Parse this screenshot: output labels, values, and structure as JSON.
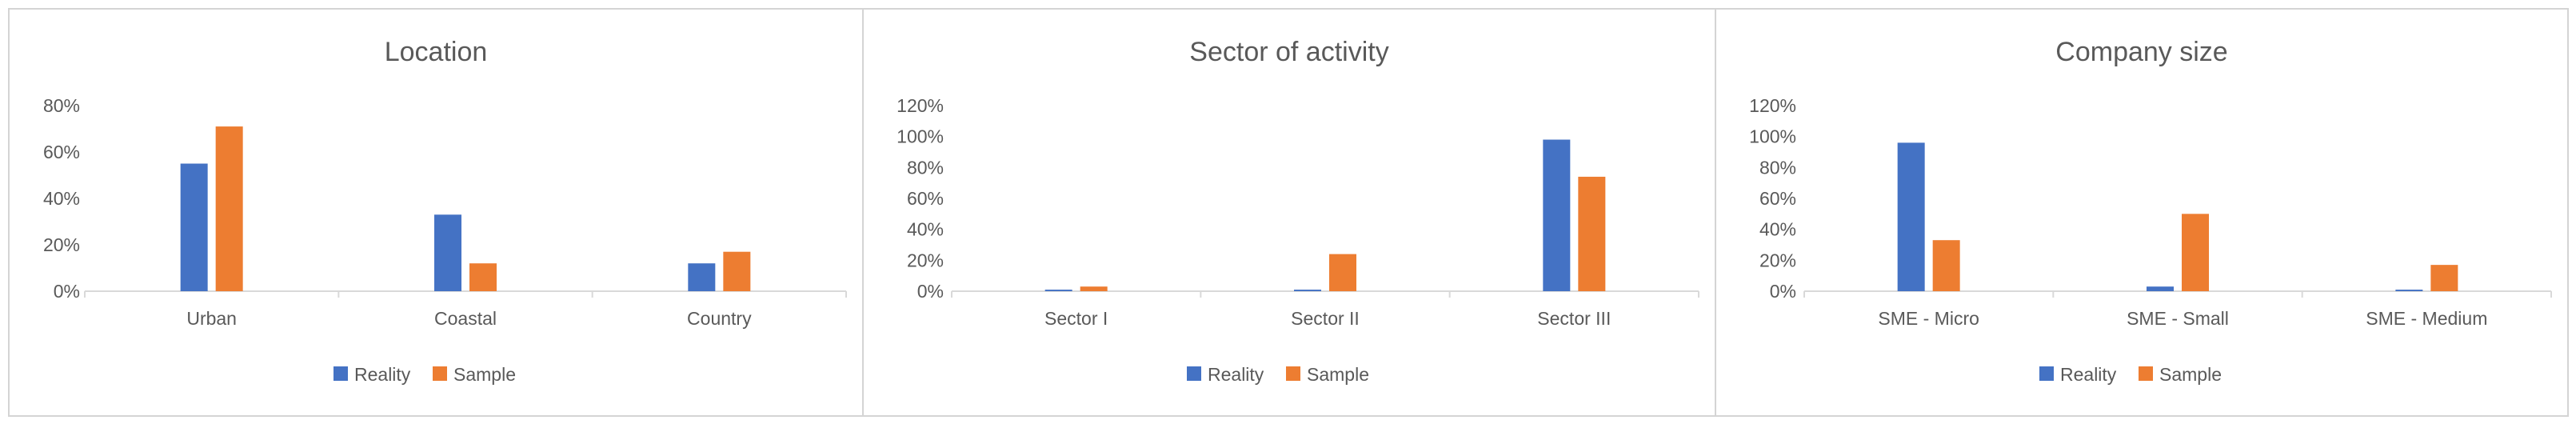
{
  "colors": {
    "reality": "#4472c4",
    "sample": "#ed7d31",
    "axis": "#d9d9d9",
    "text": "#595959"
  },
  "chart_data": [
    {
      "type": "bar",
      "title": "Location",
      "categories": [
        "Urban",
        "Coastal",
        "Country"
      ],
      "series": [
        {
          "name": "Reality",
          "values": [
            55,
            33,
            12
          ]
        },
        {
          "name": "Sample",
          "values": [
            71,
            12,
            17
          ]
        }
      ],
      "ylim": [
        0,
        80
      ],
      "yticks": [
        "0%",
        "20%",
        "40%",
        "60%",
        "80%"
      ],
      "ytick_values": [
        0,
        20,
        40,
        60,
        80
      ],
      "legend": "bottom",
      "grid": false
    },
    {
      "type": "bar",
      "title": "Sector of activity",
      "categories": [
        "Sector I",
        "Sector II",
        "Sector III"
      ],
      "series": [
        {
          "name": "Reality",
          "values": [
            1,
            1,
            98
          ]
        },
        {
          "name": "Sample",
          "values": [
            3,
            24,
            74
          ]
        }
      ],
      "ylim": [
        0,
        120
      ],
      "yticks": [
        "0%",
        "20%",
        "40%",
        "60%",
        "80%",
        "100%",
        "120%"
      ],
      "ytick_values": [
        0,
        20,
        40,
        60,
        80,
        100,
        120
      ],
      "legend": "bottom",
      "grid": false
    },
    {
      "type": "bar",
      "title": "Company size",
      "categories": [
        "SME - Micro",
        "SME - Small",
        "SME - Medium"
      ],
      "series": [
        {
          "name": "Reality",
          "values": [
            96,
            3,
            1
          ]
        },
        {
          "name": "Sample",
          "values": [
            33,
            50,
            17
          ]
        }
      ],
      "ylim": [
        0,
        120
      ],
      "yticks": [
        "0%",
        "20%",
        "40%",
        "60%",
        "80%",
        "100%",
        "120%"
      ],
      "ytick_values": [
        0,
        20,
        40,
        60,
        80,
        100,
        120
      ],
      "legend": "bottom",
      "grid": false
    }
  ]
}
